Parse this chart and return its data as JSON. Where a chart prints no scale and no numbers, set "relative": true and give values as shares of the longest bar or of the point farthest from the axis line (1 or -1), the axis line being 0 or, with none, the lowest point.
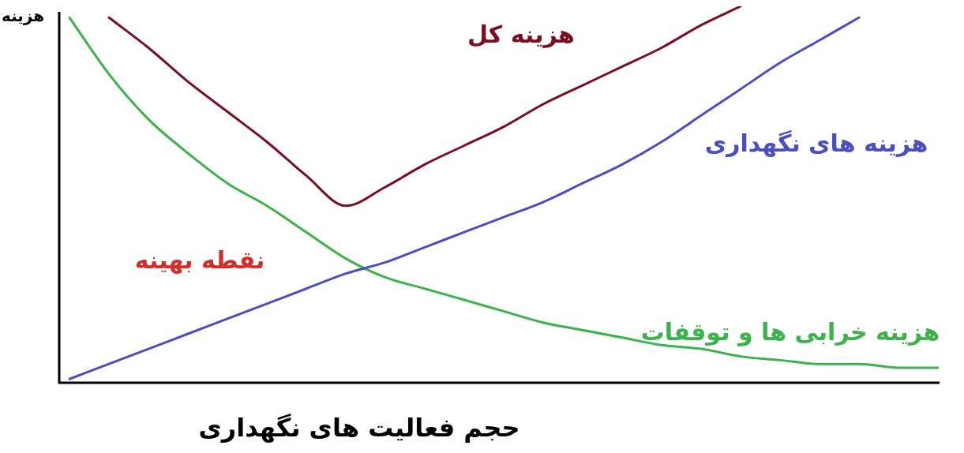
{
  "chart_data": {
    "type": "line",
    "relative": true,
    "marker": "none",
    "xlabel": "حجم فعالیت های نگهداری",
    "ylabel": "هزینه",
    "categories": [
      null,
      null,
      null,
      null,
      null,
      null,
      null,
      null,
      null,
      null,
      null,
      null,
      null,
      null,
      null,
      null,
      null,
      null,
      null,
      null,
      null,
      null,
      null
    ],
    "series": [
      {
        "name": "هزینه کل",
        "color": "#7b0d1e",
        "values": [
          null,
          0.97,
          0.89,
          0.8,
          0.72,
          0.64,
          0.55,
          0.47,
          0.52,
          0.58,
          0.63,
          0.68,
          0.74,
          0.79,
          0.84,
          0.89,
          0.95,
          1,
          null,
          null,
          null,
          null,
          null
        ]
      },
      {
        "name": "هزینه های نگهداری",
        "color": "#4a4fc0",
        "values": [
          0.01,
          0.05,
          0.09,
          0.13,
          0.17,
          0.21,
          0.25,
          0.29,
          0.32,
          0.36,
          0.4,
          0.44,
          0.48,
          0.53,
          0.58,
          0.64,
          0.71,
          0.78,
          0.85,
          0.91,
          0.97,
          null,
          null
        ]
      },
      {
        "name": "هزینه خرابی ها و توقفات",
        "color": "#3cb34a",
        "values": [
          0.97,
          0.82,
          0.7,
          0.61,
          0.53,
          0.47,
          0.4,
          0.33,
          0.28,
          0.25,
          0.22,
          0.19,
          0.16,
          0.14,
          0.12,
          0.1,
          0.09,
          0.07,
          0.06,
          0.05,
          0.05,
          0.04,
          0.04
        ]
      }
    ],
    "annotations": [
      "نقطه بهینه"
    ]
  }
}
